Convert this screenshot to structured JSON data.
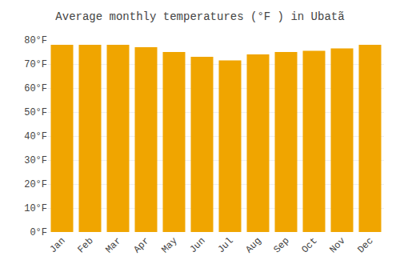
{
  "chart_data": {
    "type": "bar",
    "title": "Average monthly temperatures (°F ) in Ubatã",
    "categories": [
      "Jan",
      "Feb",
      "Mar",
      "Apr",
      "May",
      "Jun",
      "Jul",
      "Aug",
      "Sep",
      "Oct",
      "Nov",
      "Dec"
    ],
    "values": [
      78,
      78,
      78,
      77,
      75,
      73,
      71.5,
      74,
      75,
      75.5,
      76.5,
      78
    ],
    "color": "#F0A500",
    "ylim": [
      0,
      80
    ],
    "yticks": [
      {
        "value": 0,
        "label": "0°F"
      },
      {
        "value": 10,
        "label": "10°F"
      },
      {
        "value": 20,
        "label": "20°F"
      },
      {
        "value": 30,
        "label": "30°F"
      },
      {
        "value": 40,
        "label": "40°F"
      },
      {
        "value": 50,
        "label": "50°F"
      },
      {
        "value": 60,
        "label": "60°F"
      },
      {
        "value": 70,
        "label": "70°F"
      },
      {
        "value": 80,
        "label": "80°F"
      }
    ],
    "grid": true
  }
}
